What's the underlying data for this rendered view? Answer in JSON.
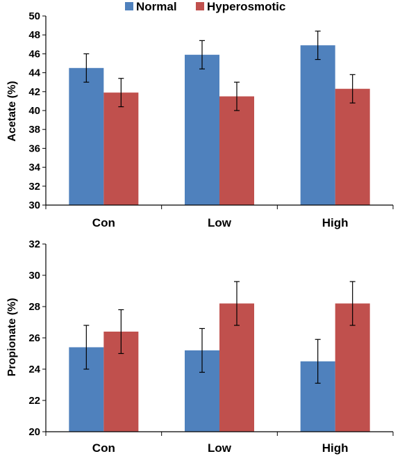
{
  "legend": [
    {
      "label": "Normal",
      "color": "#4F81BD"
    },
    {
      "label": "Hyperosmotic",
      "color": "#C0504D"
    }
  ],
  "chart_data": [
    {
      "type": "bar",
      "categories": [
        "Con",
        "Low",
        "High"
      ],
      "ylabel": "Acetate (%)",
      "xlabel": "",
      "ylim": [
        30,
        50
      ],
      "yticks": [
        30,
        32,
        34,
        36,
        38,
        40,
        42,
        44,
        46,
        48,
        50
      ],
      "series": [
        {
          "name": "Normal",
          "color": "#4F81BD",
          "values": [
            44.5,
            45.9,
            46.9
          ],
          "errors": [
            1.5,
            1.5,
            1.5
          ]
        },
        {
          "name": "Hyperosmotic",
          "color": "#C0504D",
          "values": [
            41.9,
            41.5,
            42.3
          ],
          "errors": [
            1.5,
            1.5,
            1.5
          ]
        }
      ]
    },
    {
      "type": "bar",
      "categories": [
        "Con",
        "Low",
        "High"
      ],
      "ylabel": "Propionate (%)",
      "xlabel": "",
      "ylim": [
        20,
        32
      ],
      "yticks": [
        20,
        22,
        24,
        26,
        28,
        30,
        32
      ],
      "series": [
        {
          "name": "Normal",
          "color": "#4F81BD",
          "values": [
            25.4,
            25.2,
            24.5
          ],
          "errors": [
            1.4,
            1.4,
            1.4
          ]
        },
        {
          "name": "Hyperosmotic",
          "color": "#C0504D",
          "values": [
            26.4,
            28.2,
            28.2
          ],
          "errors": [
            1.4,
            1.4,
            1.4
          ]
        }
      ]
    }
  ]
}
